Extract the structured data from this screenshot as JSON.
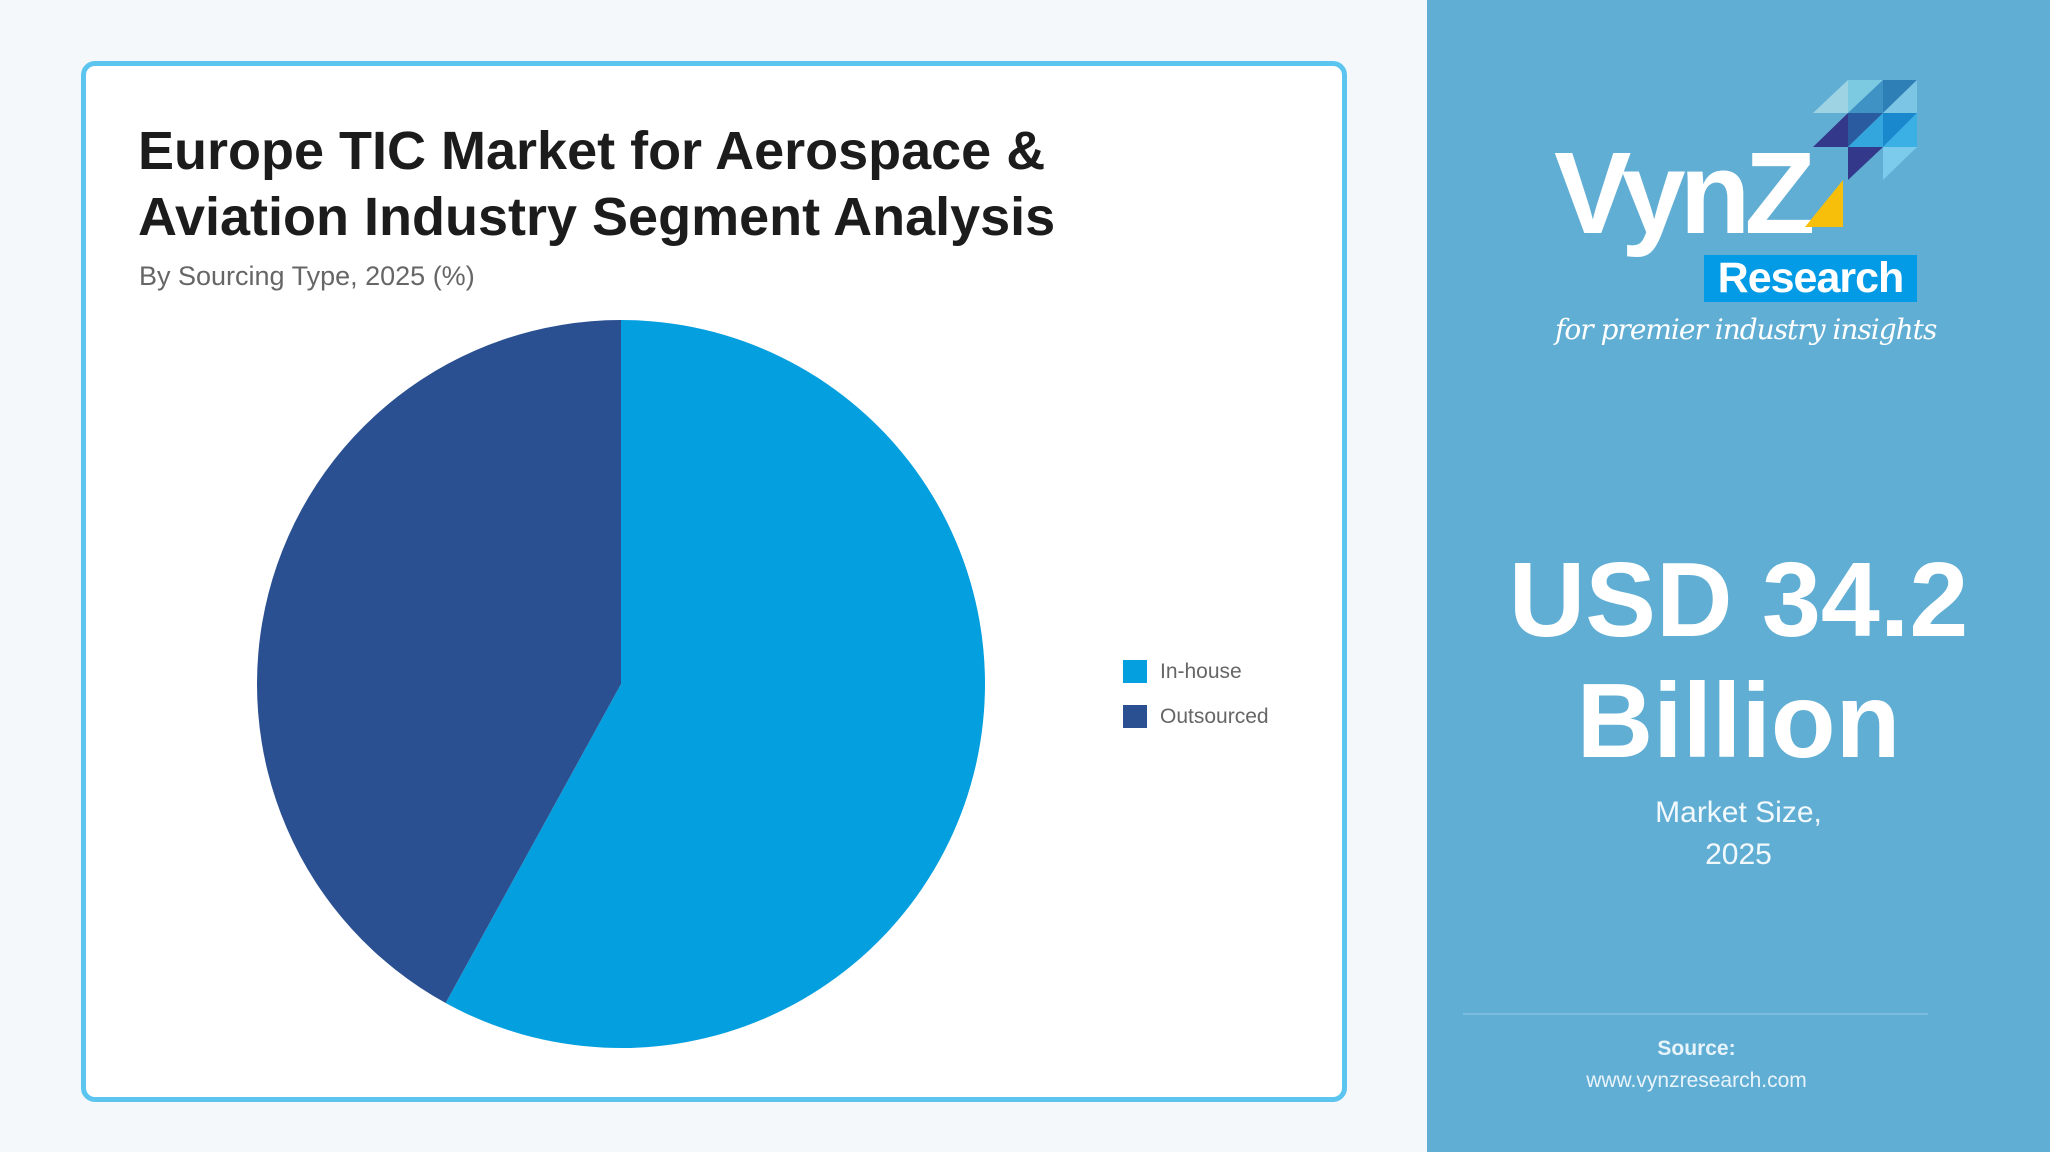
{
  "chart": {
    "title_line1": "Europe TIC Market for Aerospace &",
    "title_line2": "Aviation Industry Segment Analysis",
    "subtitle": "By Sourcing Type, 2025 (%)",
    "legend": [
      {
        "label": "In-house",
        "color": "#049fdf"
      },
      {
        "label": "Outsourced",
        "color": "#2a5091"
      }
    ]
  },
  "chart_data": {
    "type": "pie",
    "title": "Europe TIC Market for Aerospace & Aviation Industry Segment Analysis",
    "subtitle": "By Sourcing Type, 2025 (%)",
    "categories": [
      "In-house",
      "Outsourced"
    ],
    "values": [
      58,
      42
    ],
    "colors": [
      "#049fdf",
      "#2a5091"
    ],
    "start_angle": 0,
    "direction": "clockwise",
    "legend_position": "right",
    "data_labels": false
  },
  "brand": {
    "name": "VynZ",
    "sub_name": "Research",
    "tagline": "for premier industry insights",
    "accent_color": "#039be5",
    "panel_color": "#61aed4",
    "highlight_color": "#f7be0a"
  },
  "metric": {
    "value_line1": "USD 34.2",
    "value_line2": "Billion",
    "label_line1": "Market Size,",
    "label_line2": "2025"
  },
  "source": {
    "label": "Source:",
    "url": "www.vynzresearch.com"
  }
}
